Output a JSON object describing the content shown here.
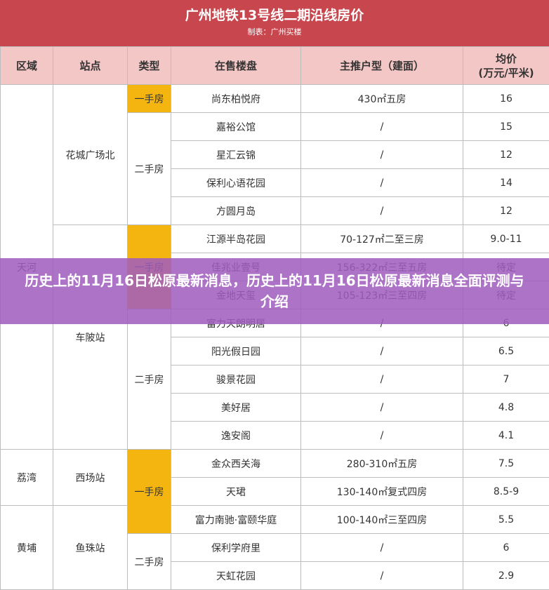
{
  "title": "广州地铁13号线二期沿线房价",
  "subtitle": "制表：广州买楼",
  "table": {
    "header": [
      "区域",
      "站点",
      "类型",
      "在售楼盘",
      "主推户型（建面）",
      [
        "均价",
        "(万元/平米)"
      ]
    ],
    "rows": [
      [
        "天河",
        "花城广场北",
        "一手房",
        "尚东柏悦府",
        "430㎡五房",
        "16"
      ],
      [
        null,
        null,
        "二手房",
        "嘉裕公馆",
        "/",
        "15"
      ],
      [
        null,
        null,
        null,
        "星汇云锦",
        "/",
        "12"
      ],
      [
        null,
        null,
        null,
        "保利心语花园",
        "/",
        "14"
      ],
      [
        null,
        null,
        null,
        "方圆月岛",
        "/",
        "12"
      ],
      [
        null,
        "车陂站",
        "一手房",
        "江源半岛花园",
        "70-127㎡二至三房",
        "9.0-11"
      ],
      [
        null,
        null,
        null,
        "佳兆业壹号",
        "156-322㎡三至五房",
        "待定"
      ],
      [
        null,
        null,
        null,
        "金地天玺",
        "105-123㎡三至四房",
        "待定"
      ],
      [
        null,
        null,
        "二手房",
        "富力天朗明居",
        "/",
        "6"
      ],
      [
        null,
        null,
        null,
        "阳光假日园",
        "/",
        "6.5"
      ],
      [
        null,
        null,
        null,
        "骏景花园",
        "/",
        "7"
      ],
      [
        null,
        null,
        null,
        "美好居",
        "/",
        "4.8"
      ],
      [
        null,
        null,
        null,
        "逸安阁",
        "/",
        "4.1"
      ],
      [
        "荔湾",
        "西场站",
        "一手房",
        "金众西关海",
        "280-310㎡五房",
        "7.5"
      ],
      [
        null,
        null,
        null,
        "天珺",
        "130-140㎡复式四房",
        "8.5-9"
      ],
      [
        "黄埔",
        "鱼珠站",
        null,
        "富力南驰·富颐华庭",
        "100-140㎡三至四房",
        "5.5"
      ],
      [
        null,
        null,
        "二手房",
        "保利学府里",
        "/",
        "6"
      ],
      [
        null,
        null,
        null,
        "天虹花园",
        "/",
        "2.9"
      ]
    ]
  },
  "banner": "历史上的11月16日松原最新消息，历史上的11月16日松原最新消息全面评测与介绍"
}
